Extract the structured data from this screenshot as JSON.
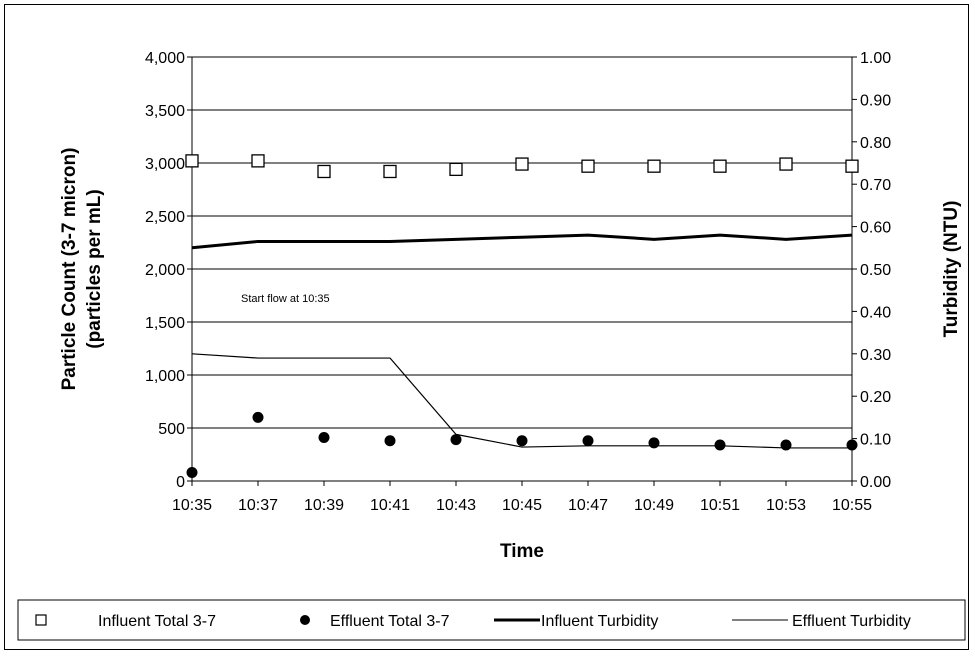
{
  "chart_data": {
    "type": "line",
    "title": "",
    "xlabel": "Time",
    "ylabel_left": [
      "Particle Count (3-7 micron)",
      "(particles per mL)"
    ],
    "ylabel_right": "Turbidity (NTU)",
    "x": [
      "10:35",
      "10:37",
      "10:39",
      "10:41",
      "10:43",
      "10:45",
      "10:47",
      "10:49",
      "10:51",
      "10:53",
      "10:55"
    ],
    "ylim_left": [
      0,
      4000
    ],
    "ylim_right": [
      0,
      1.0
    ],
    "yticks_left": [
      "0",
      "500",
      "1,000",
      "1,500",
      "2,000",
      "2,500",
      "3,000",
      "3,500",
      "4,000"
    ],
    "yticks_right": [
      "0.00",
      "0.10",
      "0.20",
      "0.30",
      "0.40",
      "0.50",
      "0.60",
      "0.70",
      "0.80",
      "0.90",
      "1.00"
    ],
    "grid": true,
    "legend_position": "bottom",
    "annotation": "Start flow at 10:35",
    "series": [
      {
        "name": "Influent Total 3-7",
        "axis": "left",
        "style": "open-square",
        "values": [
          3020,
          3020,
          2920,
          2920,
          2940,
          2990,
          2970,
          2970,
          2970,
          2990,
          2970
        ]
      },
      {
        "name": "Effluent Total 3-7",
        "axis": "left",
        "style": "filled-circle",
        "values": [
          80,
          600,
          410,
          380,
          390,
          380,
          380,
          360,
          340,
          340,
          340
        ]
      },
      {
        "name": "Influent Turbidity",
        "axis": "right",
        "style": "thick-line",
        "values": [
          0.55,
          0.565,
          0.565,
          0.565,
          0.57,
          0.575,
          0.58,
          0.57,
          0.58,
          0.57,
          0.58
        ]
      },
      {
        "name": "Effluent Turbidity",
        "axis": "right",
        "style": "thin-line",
        "values": [
          0.3,
          0.29,
          0.29,
          0.29,
          0.11,
          0.08,
          0.083,
          0.083,
          0.083,
          0.078,
          0.078
        ]
      }
    ]
  }
}
